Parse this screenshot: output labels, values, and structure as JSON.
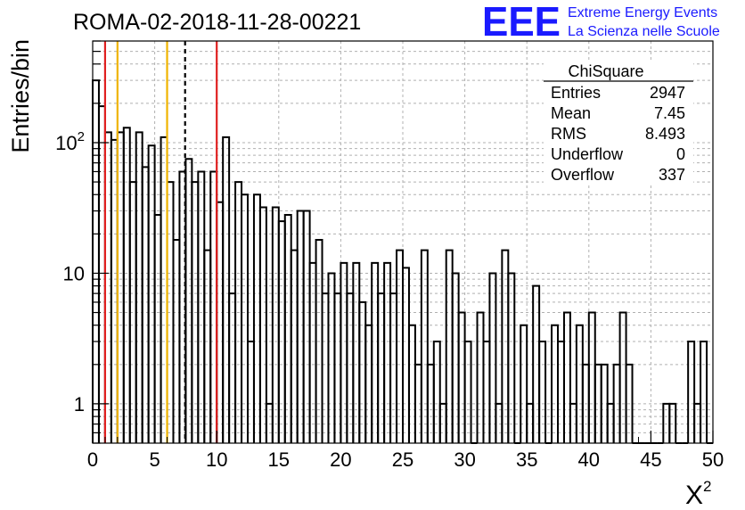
{
  "title": "ROMA-02-2018-11-28-00221",
  "logo": {
    "mark": "EEE",
    "line1": "Extreme Energy Events",
    "line2": "La Scienza nelle Scuole",
    "color": "#1a1aff"
  },
  "stats_box": {
    "title": "ChiSquare",
    "rows": [
      {
        "label": "Entries",
        "value": "2947"
      },
      {
        "label": "Mean",
        "value": "7.45"
      },
      {
        "label": "RMS",
        "value": "8.493"
      },
      {
        "label": "Underflow",
        "value": "0"
      },
      {
        "label": "Overflow",
        "value": "337"
      }
    ]
  },
  "chart_data": {
    "type": "bar",
    "histogram": true,
    "xlabel": "X",
    "xlabel_superscript": "2",
    "ylabel": "Entries/bin",
    "xlim": [
      0,
      50
    ],
    "ylim": [
      0.5,
      600
    ],
    "yscale": "log",
    "grid": true,
    "bin_width": 0.5,
    "x_ticks": [
      0,
      5,
      10,
      15,
      20,
      25,
      30,
      35,
      40,
      45,
      50
    ],
    "x_tick_labels": [
      "0",
      "5",
      "10",
      "15",
      "20",
      "25",
      "30",
      "35",
      "40",
      "45",
      "50"
    ],
    "y_ticks": [
      1,
      10,
      100
    ],
    "y_tick_labels": [
      {
        "base": "1",
        "exp": ""
      },
      {
        "base": "10",
        "exp": ""
      },
      {
        "base": "10",
        "exp": "2"
      }
    ],
    "values": [
      300,
      190,
      120,
      105,
      120,
      130,
      50,
      120,
      65,
      95,
      28,
      110,
      50,
      18,
      60,
      75,
      50,
      60,
      15,
      60,
      35,
      110,
      7,
      50,
      40,
      3,
      40,
      32,
      1,
      32,
      25,
      28,
      15,
      30,
      30,
      12,
      18,
      7,
      10,
      7,
      12,
      7,
      12,
      6,
      4,
      12,
      7,
      12,
      7,
      15,
      11,
      4,
      2,
      15,
      2,
      3,
      1,
      15,
      10,
      5,
      3,
      0.1,
      5,
      3,
      10,
      1,
      15,
      10,
      0.1,
      4,
      1,
      8,
      3,
      0.1,
      4,
      3,
      5,
      1,
      4,
      2,
      5,
      2,
      2,
      1,
      2,
      5,
      2,
      0.1,
      0.1,
      0.1,
      0.1,
      0.1,
      1,
      1,
      0.1,
      0.1,
      3,
      1,
      3,
      0.1
    ],
    "vertical_lines": [
      {
        "x": 1,
        "color": "#e02020",
        "style": "solid"
      },
      {
        "x": 2,
        "color": "#f0b400",
        "style": "solid"
      },
      {
        "x": 6,
        "color": "#f0b400",
        "style": "solid"
      },
      {
        "x": 7.45,
        "color": "#000000",
        "style": "dashed"
      },
      {
        "x": 10,
        "color": "#e02020",
        "style": "solid"
      }
    ]
  }
}
